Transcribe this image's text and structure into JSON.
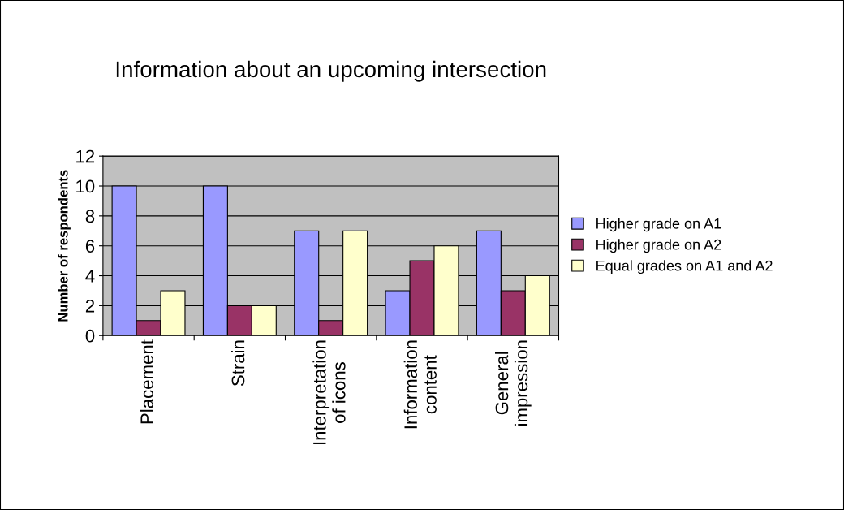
{
  "chart_data": {
    "type": "bar",
    "title": "Information about an upcoming intersection",
    "ylabel": "Number of respondents",
    "categories": [
      "Placement",
      "Strain",
      "Interpretation\nof icons",
      "Information\ncontent",
      "General\nimpression"
    ],
    "series": [
      {
        "name": "Higher grade on A1",
        "color": "#9999ff",
        "values": [
          10,
          10,
          7,
          3,
          7
        ]
      },
      {
        "name": "Higher grade on A2",
        "color": "#993366",
        "values": [
          1,
          2,
          1,
          5,
          3
        ]
      },
      {
        "name": "Equal grades on A1 and A2",
        "color": "#ffffcc",
        "values": [
          3,
          2,
          7,
          6,
          4
        ]
      }
    ],
    "ylim": [
      0,
      12
    ],
    "yticks": [
      0,
      2,
      4,
      6,
      8,
      10,
      12
    ],
    "grid": "y",
    "legend": "right"
  }
}
